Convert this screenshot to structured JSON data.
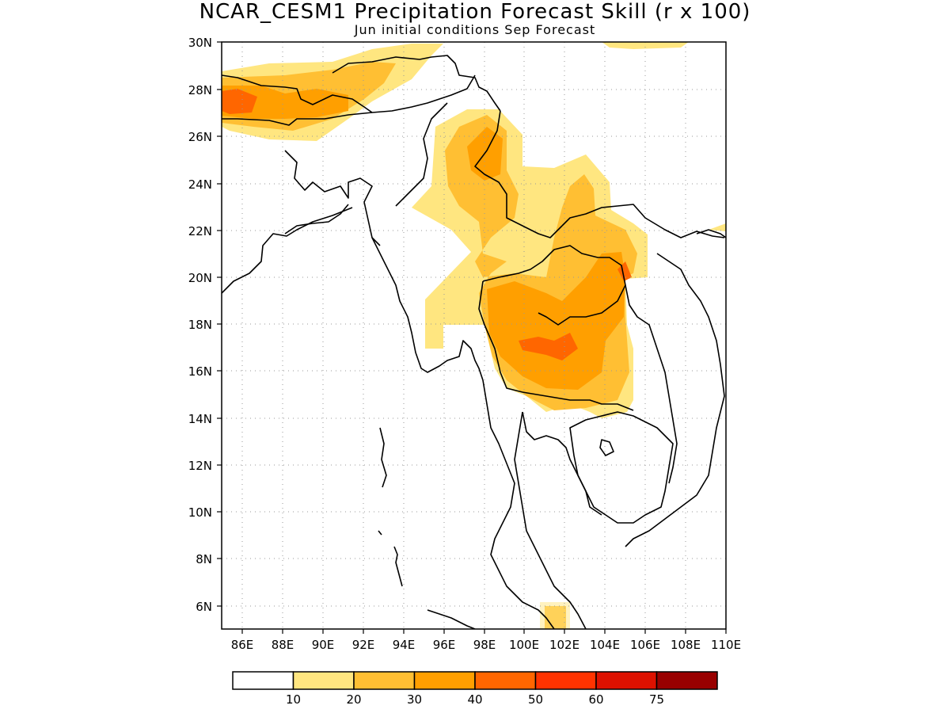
{
  "title": "NCAR_CESM1 Precipitation Forecast Skill (r x 100)",
  "subtitle": "Jun initial conditions  Sep Forecast",
  "map": {
    "lon_range": [
      85,
      110
    ],
    "lat_range": [
      5,
      30
    ],
    "lat_ticks": [
      "30N",
      "28N",
      "26N",
      "24N",
      "22N",
      "20N",
      "18N",
      "16N",
      "14N",
      "12N",
      "10N",
      "8N",
      "6N"
    ],
    "lon_ticks": [
      "86E",
      "88E",
      "90E",
      "92E",
      "94E",
      "96E",
      "98E",
      "100E",
      "102E",
      "104E",
      "106E",
      "108E",
      "110E"
    ],
    "grid": true
  },
  "colorbar": {
    "colors": [
      "#ffffff",
      "#ffe680",
      "#ffbf33",
      "#ff9f00",
      "#ff6600",
      "#ff3300",
      "#dd1100",
      "#990000"
    ],
    "labels": [
      "10",
      "20",
      "30",
      "40",
      "50",
      "60",
      "75"
    ]
  }
}
